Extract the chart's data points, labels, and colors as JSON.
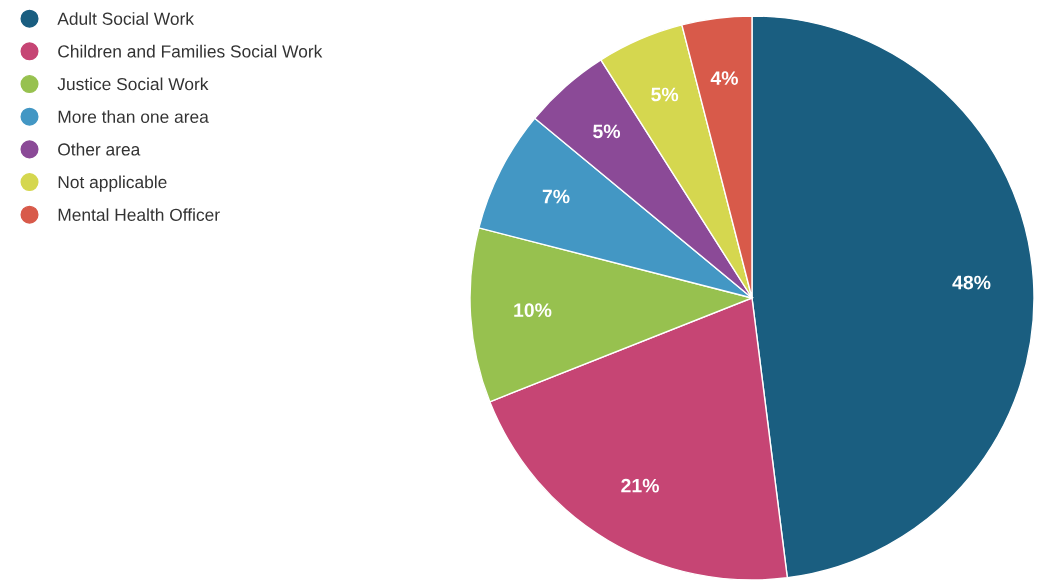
{
  "chart_data": {
    "type": "pie",
    "categories": [
      "Adult Social Work",
      "Children and Families Social Work",
      "Justice Social Work",
      "More than one area",
      "Other area",
      "Not applicable",
      "Mental Health Officer"
    ],
    "values": [
      48,
      21,
      10,
      7,
      5,
      5,
      4
    ],
    "colors": [
      "#1a5e80",
      "#c64574",
      "#97c14f",
      "#4397c4",
      "#8b4a97",
      "#d5d74f",
      "#d85a4a"
    ],
    "value_labels": [
      "48%",
      "21%",
      "10%",
      "7%",
      "5%",
      "5%",
      "4%"
    ],
    "legend": "top left"
  }
}
